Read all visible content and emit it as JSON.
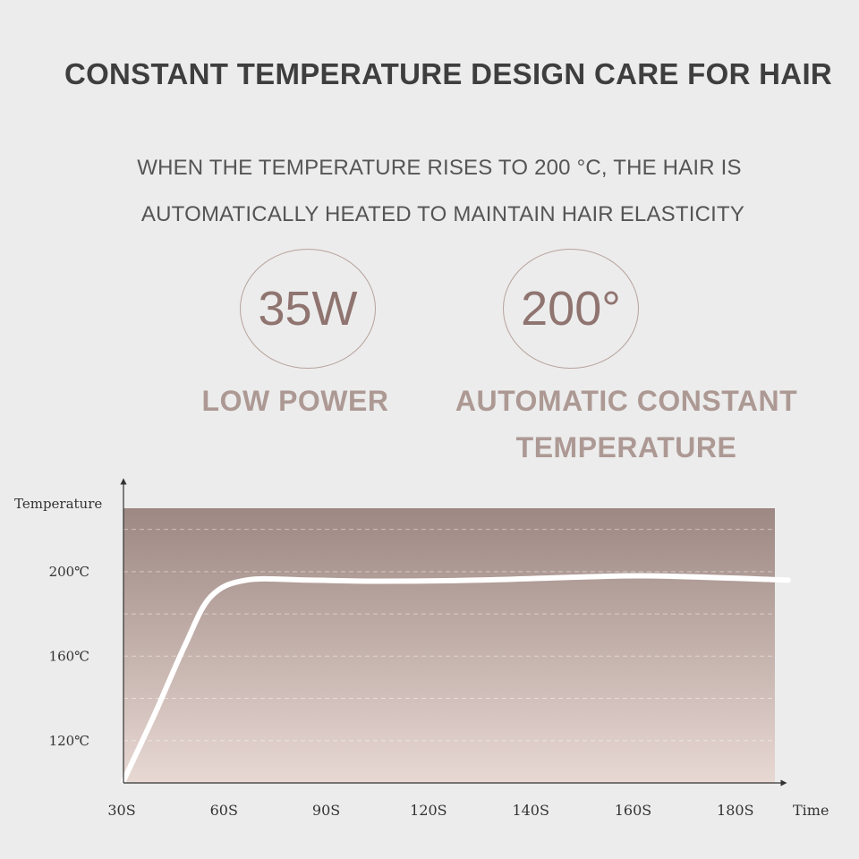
{
  "headline": "CONSTANT TEMPERATURE DESIGN CARE FOR HAIR",
  "subline1": "WHEN THE TEMPERATURE RISES TO 200 °C, THE HAIR IS",
  "subline2": "AUTOMATICALLY HEATED TO MAINTAIN HAIR ELASTICITY",
  "features": [
    {
      "value": "35W",
      "label_lines": [
        "LOW POWER"
      ]
    },
    {
      "value": "200°",
      "label_lines": [
        "AUTOMATIC CONSTANT",
        "TEMPERATURE"
      ]
    }
  ],
  "colors": {
    "headline": "#3e3e3e",
    "accent_text": "#ad9994",
    "circle_value": "#8f7470",
    "plot_top": "#9d8883",
    "plot_bottom": "#e8d8d3",
    "curve": "#ffffff"
  },
  "chart_data": {
    "type": "line",
    "xlabel": "Time",
    "ylabel": "Temperature",
    "x_categories": [
      "30S",
      "60S",
      "90S",
      "120S",
      "140S",
      "160S",
      "180S"
    ],
    "y_ticks": [
      "120℃",
      "160℃",
      "200℃"
    ],
    "y_tick_values": [
      120,
      160,
      200
    ],
    "ylim": [
      100,
      230
    ],
    "grid": "horizontal dashed",
    "series": [
      {
        "points": [
          [
            0.0,
            101
          ],
          [
            0.3,
            132
          ],
          [
            0.6,
            165
          ],
          [
            0.85,
            188
          ],
          [
            1.2,
            196
          ],
          [
            1.8,
            196
          ],
          [
            2.5,
            195.5
          ],
          [
            3.5,
            196
          ],
          [
            4.5,
            197.5
          ],
          [
            5.2,
            198
          ],
          [
            6.5,
            196
          ]
        ]
      }
    ]
  }
}
